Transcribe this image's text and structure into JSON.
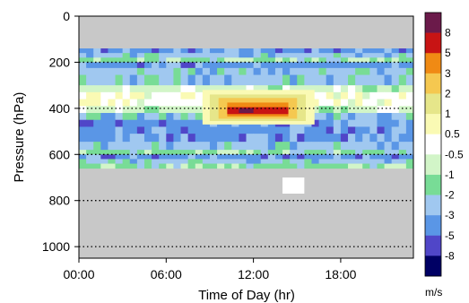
{
  "chart_data": {
    "type": "heatmap",
    "title": "",
    "xlabel": "Time of Day (hr)",
    "ylabel": "Pressure (hPa)",
    "xlim": [
      0,
      23
    ],
    "ylim": [
      1050,
      0
    ],
    "x_tick_labels": [
      "00:00",
      "06:00",
      "12:00",
      "18:00"
    ],
    "x_ticks": [
      0,
      6,
      12,
      18
    ],
    "y_ticks": [
      0,
      200,
      400,
      600,
      800,
      1000
    ],
    "y_tick_labels": [
      "0",
      "200",
      "400",
      "600",
      "800",
      "1000"
    ],
    "reference_lines_hPa": [
      200,
      400,
      600,
      800,
      1000
    ],
    "missing_color": "#c8c8c8",
    "colorbar": {
      "unit": "m/s",
      "labels": [
        "8",
        "5",
        "3",
        "2",
        "1",
        "0.5",
        "-0.5",
        "-1",
        "-2",
        "-3",
        "-5",
        "-8"
      ],
      "colors": [
        "#6b1a4a",
        "#c81414",
        "#f08a14",
        "#f5c850",
        "#e6e68a",
        "#fafab4",
        "#ffffff",
        "#d2f5c8",
        "#78dc96",
        "#a0c8f0",
        "#5a96e6",
        "#5046c8",
        "#000064"
      ]
    },
    "data_bands": [
      {
        "from_hPa": 140,
        "to_hPa": 160,
        "category": 10
      },
      {
        "from_hPa": 160,
        "to_hPa": 180,
        "category": 9
      },
      {
        "from_hPa": 180,
        "to_hPa": 200,
        "category": 8
      },
      {
        "from_hPa": 200,
        "to_hPa": 225,
        "category": 10
      },
      {
        "from_hPa": 225,
        "to_hPa": 255,
        "category": 9
      },
      {
        "from_hPa": 255,
        "to_hPa": 300,
        "category": 9
      },
      {
        "from_hPa": 300,
        "to_hPa": 330,
        "category": 7
      },
      {
        "from_hPa": 330,
        "to_hPa": 360,
        "category": 6
      },
      {
        "from_hPa": 360,
        "to_hPa": 390,
        "category": 6
      },
      {
        "from_hPa": 390,
        "to_hPa": 420,
        "category": 7
      },
      {
        "from_hPa": 420,
        "to_hPa": 450,
        "category": 9
      },
      {
        "from_hPa": 450,
        "to_hPa": 480,
        "category": 10
      },
      {
        "from_hPa": 480,
        "to_hPa": 510,
        "category": 10
      },
      {
        "from_hPa": 510,
        "to_hPa": 545,
        "category": 10
      },
      {
        "from_hPa": 545,
        "to_hPa": 580,
        "category": 9
      },
      {
        "from_hPa": 580,
        "to_hPa": 600,
        "category": 8
      },
      {
        "from_hPa": 600,
        "to_hPa": 620,
        "category": 10
      },
      {
        "from_hPa": 620,
        "to_hPa": 640,
        "category": 9
      },
      {
        "from_hPa": 640,
        "to_hPa": 660,
        "category": 8
      }
    ],
    "features": [
      {
        "name": "midday positive core (0.5 contour)",
        "from_hr": 8.5,
        "to_hr": 16.2,
        "from_hPa": 320,
        "to_hPa": 470,
        "category": 5
      },
      {
        "name": "midday positive core (1 contour)",
        "from_hr": 9.0,
        "to_hr": 15.6,
        "from_hPa": 340,
        "to_hPa": 455,
        "category": 4
      },
      {
        "name": "midday positive core (2 contour)",
        "from_hr": 9.6,
        "to_hr": 15.0,
        "from_hPa": 355,
        "to_hPa": 445,
        "category": 3
      },
      {
        "name": "midday positive core (3 contour)",
        "from_hr": 10.2,
        "to_hr": 14.4,
        "from_hPa": 375,
        "to_hPa": 435,
        "category": 2
      },
      {
        "name": "midday positive core (5 contour)",
        "from_hr": 10.2,
        "to_hr": 14.4,
        "from_hPa": 395,
        "to_hPa": 425,
        "category": 1
      },
      {
        "name": "midday positive core (8 contour)",
        "from_hr": 11.0,
        "to_hr": 12.0,
        "from_hPa": 400,
        "to_hPa": 420,
        "category": 0
      },
      {
        "name": "afternoon near-zero column",
        "from_hr": 14.0,
        "to_hr": 15.5,
        "from_hPa": 700,
        "to_hPa": 770,
        "category": 6
      }
    ]
  }
}
